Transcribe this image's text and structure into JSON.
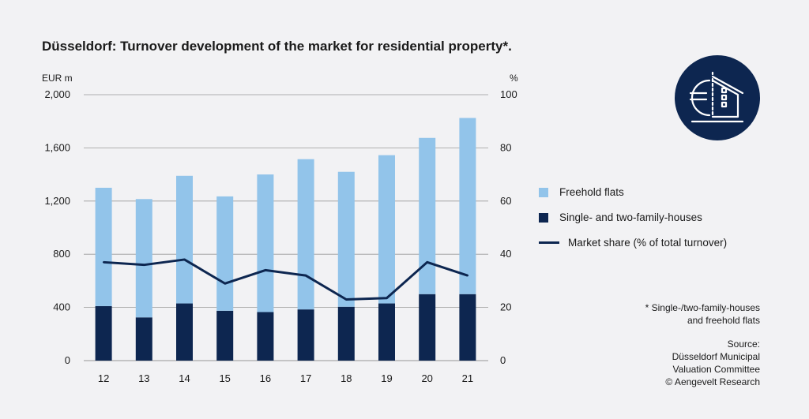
{
  "chart_data": {
    "type": "bar",
    "title": "Düsseldorf: Turnover development of the market for residential property*.",
    "y_left_unit": "EUR m",
    "y_right_unit": "%",
    "categories": [
      "12",
      "13",
      "14",
      "15",
      "16",
      "17",
      "18",
      "19",
      "20",
      "21"
    ],
    "ylim": [
      0,
      2000
    ],
    "y2lim": [
      0,
      100
    ],
    "y_ticks": [
      "0",
      "400",
      "800",
      "1,200",
      "1,600",
      "2,000"
    ],
    "y2_ticks": [
      "0",
      "20",
      "40",
      "60",
      "80",
      "100"
    ],
    "series": [
      {
        "name": "Single- and two-family-houses",
        "stack": true,
        "color": "#0d2650",
        "values": [
          410,
          325,
          430,
          375,
          365,
          385,
          405,
          430,
          500,
          500
        ]
      },
      {
        "name": "Freehold flats",
        "stack": true,
        "color": "#92c4ea",
        "values": [
          890,
          890,
          960,
          860,
          1035,
          1130,
          1015,
          1115,
          1175,
          1325
        ]
      },
      {
        "name": "Market share (% of total turnover)",
        "axis": "right",
        "color": "#0d2650",
        "values": [
          37,
          36,
          38,
          29,
          34,
          32,
          23,
          23.5,
          37,
          32
        ]
      }
    ],
    "legend_position": "right",
    "grid": true
  },
  "note": {
    "line1": "* Single-/two-family-houses",
    "line2": "and freehold flats"
  },
  "source": {
    "label": "Source:",
    "line1": "Düsseldorf Municipal",
    "line2": "Valuation Committee",
    "line3": "© Aengevelt Research"
  },
  "colors": {
    "dark": "#0d2650",
    "light": "#92c4ea",
    "grid": "#999999"
  },
  "logo_icon": "euro-house-icon"
}
